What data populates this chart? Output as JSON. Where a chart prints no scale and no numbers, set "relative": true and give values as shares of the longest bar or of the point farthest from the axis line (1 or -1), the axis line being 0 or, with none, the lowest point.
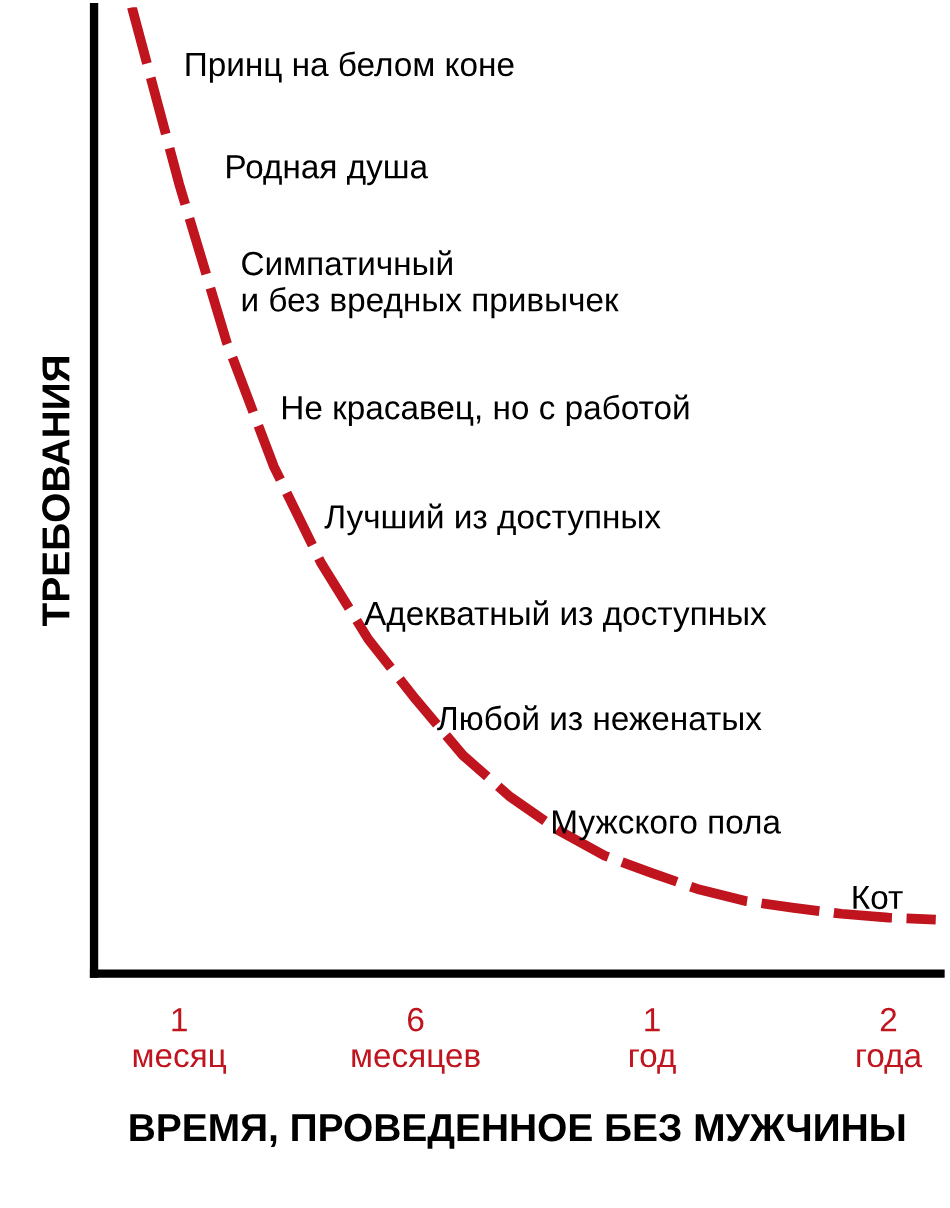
{
  "chart_data": {
    "type": "line",
    "relative": true,
    "xlabel": "ВРЕМЯ, ПРОВЕДЕННОЕ БЕЗ МУЖЧИНЫ",
    "ylabel": "ТРЕБОВАНИЯ",
    "categories": [
      null,
      "1\nмесяц",
      null,
      null,
      null,
      null,
      "6\nмесяцев",
      null,
      null,
      null,
      null,
      "1\nгод",
      null,
      null,
      null,
      null,
      "2\nгода",
      null
    ],
    "series": [
      {
        "color": "#c0141e",
        "values": [
          1.0,
          0.817,
          0.654,
          0.525,
          0.425,
          0.346,
          0.284,
          0.226,
          0.183,
          0.149,
          0.122,
          0.104,
          0.087,
          0.075,
          0.068,
          0.062,
          0.058,
          0.056
        ]
      }
    ],
    "line_style": "dashed",
    "grid": false,
    "legend": false,
    "annotations": [
      "Принц на белом коне",
      "Родная душа",
      "Симпатичный\nи без вредных привычек",
      "Не красавец, но с работой",
      "Лучший из доступных",
      "Адекватный из доступных",
      "Любой из неженатых",
      "Мужского пола",
      "Кот"
    ]
  }
}
